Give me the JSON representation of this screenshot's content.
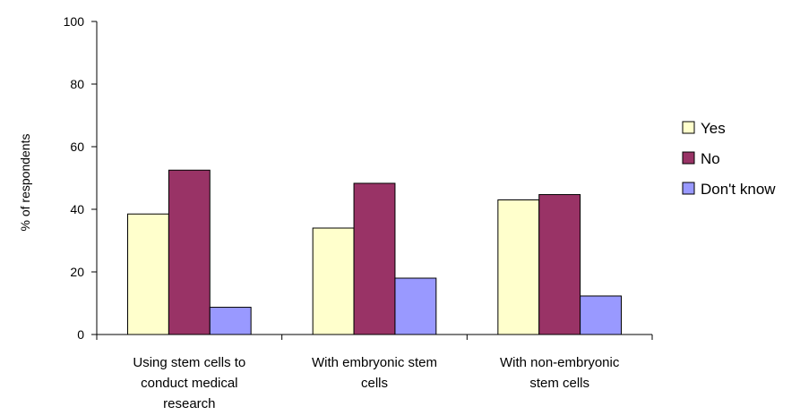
{
  "chart_data": {
    "type": "bar",
    "title": "",
    "xlabel": "",
    "ylabel": "% of respondents",
    "ylim": [
      0,
      100
    ],
    "yticks": [
      0,
      20,
      40,
      60,
      80,
      100
    ],
    "grid": false,
    "legend_position": "right",
    "categories": [
      [
        "Using stem cells to",
        "conduct medical",
        "research"
      ],
      [
        "With embryonic stem",
        "cells"
      ],
      [
        "With non-embryonic",
        "stem cells"
      ]
    ],
    "series": [
      {
        "name": "Yes",
        "color": "#ffffcc",
        "values": [
          38.5,
          34,
          43
        ]
      },
      {
        "name": "No",
        "color": "#993366",
        "values": [
          52.5,
          48.3,
          44.7
        ]
      },
      {
        "name": "Don't know",
        "color": "#9999ff",
        "values": [
          8.7,
          18,
          12.3
        ]
      }
    ]
  }
}
